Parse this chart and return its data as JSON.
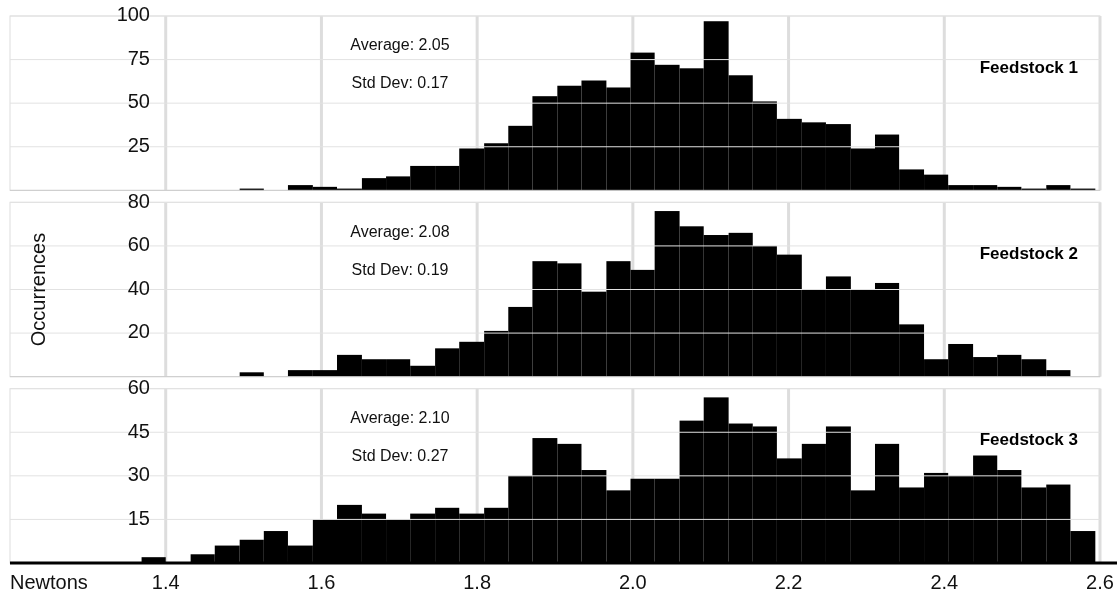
{
  "chart_data": [
    {
      "type": "histogram",
      "title": "Feedstock 1",
      "annotations": [
        "Average: 2.05",
        "Std Dev: 0.17"
      ],
      "color": "#000000",
      "bins": [
        1.495,
        1.526,
        1.557,
        1.589,
        1.62,
        1.652,
        1.683,
        1.714,
        1.746,
        1.777,
        1.809,
        1.84,
        1.871,
        1.903,
        1.934,
        1.966,
        1.997,
        2.028,
        2.06,
        2.091,
        2.123,
        2.154,
        2.185,
        2.217,
        2.248,
        2.28,
        2.311,
        2.342,
        2.374,
        2.405,
        2.437,
        2.468,
        2.499,
        2.531,
        2.562,
        2.594
      ],
      "values": [
        1,
        0,
        3,
        2,
        1,
        7,
        8,
        14,
        14,
        24,
        27,
        37,
        54,
        60,
        63,
        59,
        79,
        72,
        70,
        97,
        66,
        51,
        41,
        39,
        38,
        24,
        32,
        12,
        9,
        3,
        3,
        2,
        1,
        3,
        1
      ],
      "xlim": [
        1.2,
        2.6
      ],
      "xticks": [
        1.4,
        1.6,
        1.8,
        2,
        2.2,
        2.4,
        2.6
      ],
      "ylim": [
        0,
        100
      ],
      "yticks": [
        25,
        50,
        75,
        100
      ],
      "grid": true,
      "tick_labels": "y"
    },
    {
      "type": "histogram",
      "title": "Feedstock 2",
      "ylabel": "Occurrences",
      "annotations": [
        "Average: 2.08",
        "Std Dev: 0.19"
      ],
      "color": "#000000",
      "bins": [
        1.495,
        1.526,
        1.557,
        1.589,
        1.62,
        1.652,
        1.683,
        1.714,
        1.746,
        1.777,
        1.809,
        1.84,
        1.871,
        1.903,
        1.934,
        1.966,
        1.997,
        2.028,
        2.06,
        2.091,
        2.123,
        2.154,
        2.185,
        2.217,
        2.248,
        2.28,
        2.311,
        2.342,
        2.374,
        2.405,
        2.437,
        2.468,
        2.499,
        2.531,
        2.562
      ],
      "values": [
        2,
        0,
        3,
        3,
        10,
        8,
        8,
        5,
        13,
        16,
        21,
        32,
        53,
        52,
        39,
        53,
        49,
        76,
        69,
        65,
        66,
        60,
        56,
        40,
        46,
        40,
        43,
        24,
        8,
        15,
        9,
        10,
        8,
        3
      ],
      "xlim": [
        1.2,
        2.6
      ],
      "xticks": [
        1.4,
        1.6,
        1.8,
        2,
        2.2,
        2.4,
        2.6
      ],
      "ylim": [
        0,
        80
      ],
      "yticks": [
        20,
        40,
        60,
        80
      ],
      "grid": true,
      "tick_labels": "y"
    },
    {
      "type": "histogram",
      "title": "Feedstock 3",
      "xlabel": "Newtons",
      "annotations": [
        "Average: 2.10",
        "Std Dev: 0.27"
      ],
      "color": "#000000",
      "bins": [
        1.369,
        1.4,
        1.432,
        1.463,
        1.495,
        1.526,
        1.557,
        1.589,
        1.62,
        1.652,
        1.683,
        1.714,
        1.746,
        1.777,
        1.809,
        1.84,
        1.871,
        1.903,
        1.934,
        1.966,
        1.997,
        2.028,
        2.06,
        2.091,
        2.123,
        2.154,
        2.185,
        2.217,
        2.248,
        2.28,
        2.311,
        2.342,
        2.374,
        2.405,
        2.437,
        2.468,
        2.499,
        2.531,
        2.562,
        2.594
      ],
      "values": [
        2,
        0,
        3,
        6,
        8,
        11,
        6,
        15,
        20,
        17,
        15,
        17,
        19,
        17,
        19,
        30,
        43,
        41,
        32,
        25,
        29,
        29,
        49,
        57,
        48,
        47,
        36,
        41,
        47,
        25,
        41,
        26,
        31,
        30,
        37,
        32,
        26,
        27,
        11
      ],
      "xlim": [
        1.2,
        2.6
      ],
      "xticks": [
        1.4,
        1.6,
        1.8,
        {
          "value": 2,
          "label": "2.0"
        },
        2.2,
        2.4,
        2.6
      ],
      "ylim": [
        0,
        60
      ],
      "yticks": [
        15,
        30,
        45,
        60
      ],
      "grid": true
    }
  ]
}
